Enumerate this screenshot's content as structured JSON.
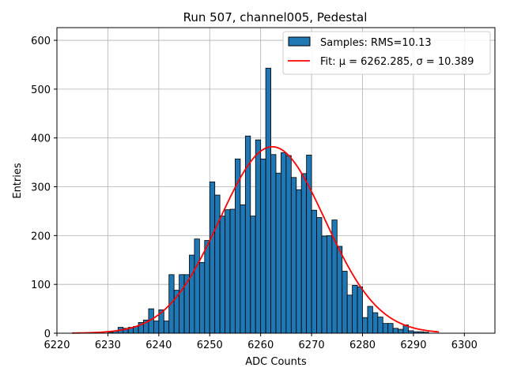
{
  "chart_data": {
    "type": "bar",
    "title": "Run 507, channel005, Pedestal",
    "xlabel": "ADC Counts",
    "ylabel": "Entries",
    "xlim": [
      6220,
      6306
    ],
    "ylim": [
      0,
      626
    ],
    "xticks": [
      6220,
      6230,
      6240,
      6250,
      6260,
      6270,
      6280,
      6290,
      6300
    ],
    "yticks": [
      0,
      100,
      200,
      300,
      400,
      500,
      600
    ],
    "grid": true,
    "legend_position": "top-right",
    "bar_color": "#1f77b4",
    "fit_color": "#ff0000",
    "bin_width": 1,
    "bins": {
      "x_start": [
        6223,
        6224,
        6225,
        6226,
        6227,
        6228,
        6229,
        6230,
        6231,
        6232,
        6233,
        6234,
        6235,
        6236,
        6237,
        6238,
        6239,
        6240,
        6241,
        6242,
        6243,
        6244,
        6245,
        6246,
        6247,
        6248,
        6249,
        6250,
        6251,
        6252,
        6253,
        6254,
        6255,
        6256,
        6257,
        6258,
        6259,
        6260,
        6261,
        6262,
        6263,
        6264,
        6265,
        6266,
        6267,
        6268,
        6269,
        6270,
        6271,
        6272,
        6273,
        6274,
        6275,
        6276,
        6277,
        6278,
        6279,
        6280,
        6281,
        6282,
        6283,
        6284,
        6285,
        6286,
        6287,
        6288,
        6289,
        6290,
        6291,
        6292,
        6293,
        6294
      ],
      "counts": [
        0,
        0,
        0,
        0,
        0,
        0,
        0,
        2,
        5,
        12,
        10,
        12,
        14,
        22,
        27,
        50,
        25,
        48,
        25,
        120,
        88,
        120,
        120,
        160,
        193,
        145,
        190,
        310,
        283,
        240,
        253,
        254,
        357,
        263,
        404,
        240,
        396,
        357,
        543,
        366,
        328,
        370,
        364,
        319,
        294,
        327,
        365,
        252,
        237,
        199,
        200,
        232,
        178,
        127,
        78,
        98,
        95,
        32,
        55,
        42,
        33,
        20,
        20,
        10,
        8,
        17,
        5,
        3,
        3,
        2,
        0,
        0
      ]
    },
    "series": [
      {
        "name": "Samples: RMS=10.13",
        "kind": "histogram"
      },
      {
        "name": "Fit: μ = 6262.285, σ = 10.389",
        "kind": "gaussian-fit",
        "mu": 6262.285,
        "sigma": 10.389,
        "amplitude": 382,
        "x_range": [
          6223,
          6295
        ]
      }
    ]
  }
}
